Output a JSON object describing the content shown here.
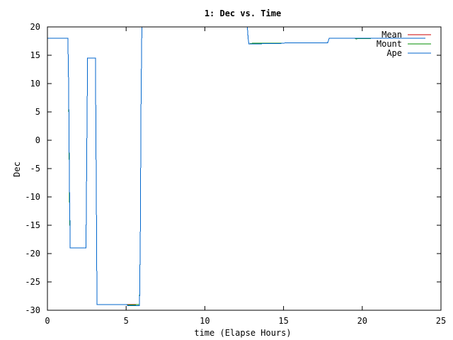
{
  "chart_data": {
    "type": "line",
    "title": "1: Dec vs. Time",
    "xlabel": "time (Elapse Hours)",
    "ylabel": "Dec",
    "xlim": [
      0,
      25
    ],
    "ylim": [
      -30,
      20
    ],
    "xticks": [
      0,
      5,
      10,
      15,
      20,
      25
    ],
    "yticks": [
      -30,
      -25,
      -20,
      -15,
      -10,
      -5,
      0,
      5,
      10,
      15,
      20
    ],
    "grid": false,
    "legend_position": "top-right",
    "series": [
      {
        "name": "Mean",
        "color": "#cc0000",
        "points": [
          [
            0,
            18
          ],
          [
            1.3,
            18
          ],
          [
            1.35,
            9
          ],
          [
            1.4,
            -9
          ],
          [
            1.45,
            -19
          ],
          [
            2.45,
            -19
          ],
          [
            2.5,
            -2
          ],
          [
            2.55,
            14.5
          ],
          [
            3.05,
            14.5
          ],
          [
            3.1,
            -7
          ],
          [
            3.15,
            -29
          ],
          [
            5.05,
            -29
          ],
          [
            5.1,
            -29
          ],
          [
            5.85,
            -29
          ],
          [
            5.9,
            -17
          ],
          [
            5.95,
            8
          ],
          [
            6.0,
            20
          ],
          [
            12.7,
            20
          ],
          [
            12.75,
            18
          ],
          [
            12.8,
            17
          ],
          [
            13.0,
            17.1
          ],
          [
            15.0,
            17.1
          ],
          [
            15.1,
            17.2
          ],
          [
            17.8,
            17.2
          ],
          [
            17.9,
            18
          ],
          [
            19.5,
            18
          ],
          [
            19.6,
            18
          ],
          [
            21.0,
            18
          ],
          [
            22.0,
            18
          ],
          [
            24.0,
            18
          ]
        ]
      },
      {
        "name": "Mount",
        "color": "#008c00",
        "points": [
          [
            0,
            18
          ],
          [
            1.3,
            18
          ],
          [
            1.35,
            9
          ],
          [
            1.4,
            -10
          ],
          [
            1.45,
            -19
          ],
          [
            2.45,
            -19
          ],
          [
            2.5,
            -2
          ],
          [
            2.55,
            14.5
          ],
          [
            3.05,
            14.5
          ],
          [
            3.1,
            -7
          ],
          [
            3.15,
            -29
          ],
          [
            5.05,
            -29
          ],
          [
            5.1,
            -29.1
          ],
          [
            5.85,
            -29
          ],
          [
            5.9,
            -17
          ],
          [
            5.95,
            8
          ],
          [
            6.0,
            20
          ],
          [
            12.7,
            20
          ],
          [
            12.75,
            18
          ],
          [
            12.8,
            17
          ],
          [
            13.0,
            17.1
          ],
          [
            15.0,
            17.1
          ],
          [
            15.1,
            17.2
          ],
          [
            17.8,
            17.2
          ],
          [
            17.9,
            18
          ],
          [
            19.5,
            18
          ],
          [
            19.6,
            17.9
          ],
          [
            21.0,
            18
          ],
          [
            22.0,
            18
          ],
          [
            24.0,
            18
          ]
        ]
      },
      {
        "name": "Ape",
        "color": "#0066cc",
        "points": [
          [
            0,
            18
          ],
          [
            1.3,
            18
          ],
          [
            1.35,
            9
          ],
          [
            1.4,
            -8
          ],
          [
            1.45,
            -19
          ],
          [
            2.45,
            -19
          ],
          [
            2.5,
            -2
          ],
          [
            2.55,
            14.5
          ],
          [
            3.05,
            14.5
          ],
          [
            3.1,
            -7
          ],
          [
            3.15,
            -29
          ],
          [
            5.05,
            -29
          ],
          [
            5.1,
            -29.2
          ],
          [
            5.85,
            -29.2
          ],
          [
            5.9,
            -17
          ],
          [
            5.95,
            8
          ],
          [
            6.0,
            20
          ],
          [
            12.7,
            20
          ],
          [
            12.75,
            18
          ],
          [
            12.8,
            17
          ],
          [
            13.0,
            17
          ],
          [
            15.0,
            17.1
          ],
          [
            15.1,
            17.2
          ],
          [
            17.8,
            17.2
          ],
          [
            17.9,
            18
          ],
          [
            19.5,
            18
          ],
          [
            19.6,
            18
          ],
          [
            21.0,
            18
          ],
          [
            22.0,
            18
          ],
          [
            24.0,
            18
          ]
        ]
      }
    ]
  }
}
